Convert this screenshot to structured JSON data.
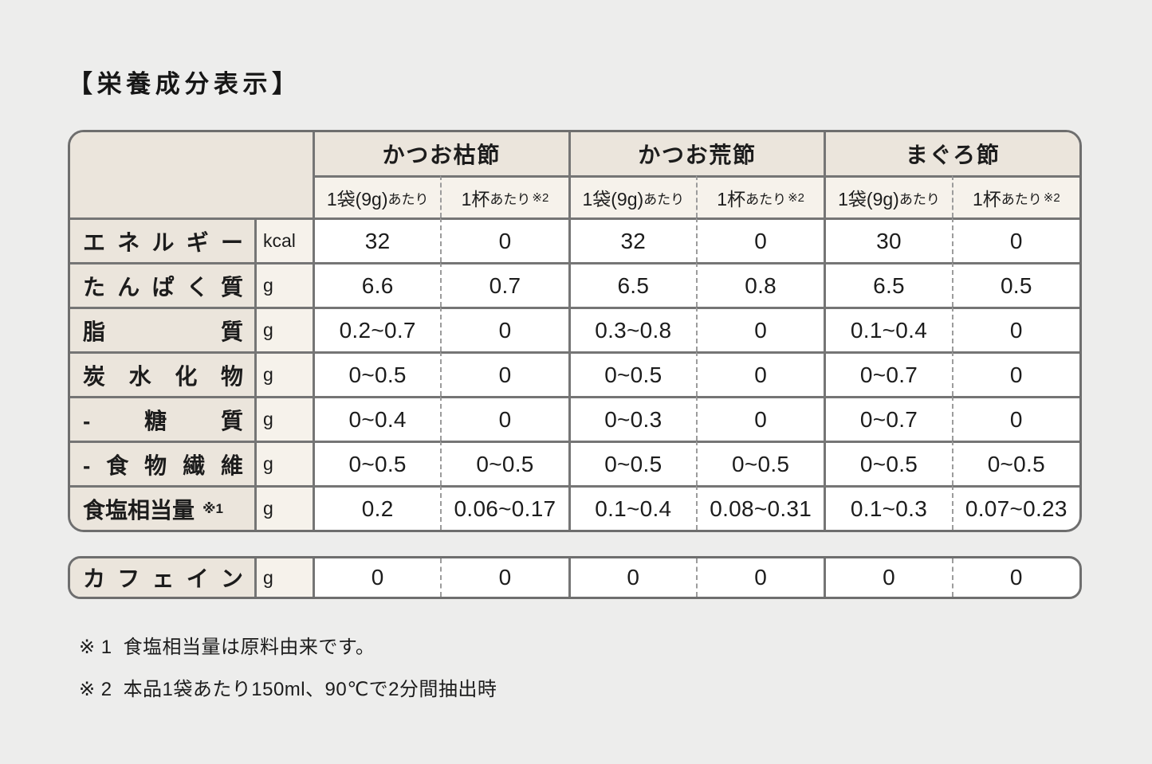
{
  "title": "【栄養成分表示】",
  "colors": {
    "page_bg": "#ededec",
    "header_beige": "#ebe5dc",
    "subheader_beige": "#f6f2eb",
    "border_solid": "#757575",
    "border_dashed": "#9c9c9c",
    "text": "#1c1c1c"
  },
  "table": {
    "products": [
      {
        "name": "かつお枯節"
      },
      {
        "name": "かつお荒節"
      },
      {
        "name": "まぐろ節"
      }
    ],
    "per_bag": {
      "main": "1袋(9g)",
      "suffix": "あたり"
    },
    "per_cup": {
      "main": "1杯",
      "suffix": "あたり",
      "note": "※2"
    },
    "rows": [
      {
        "label": "エネルギー",
        "unit": "kcal",
        "values": [
          "32",
          "0",
          "32",
          "0",
          "30",
          "0"
        ]
      },
      {
        "label": "たんぱく質",
        "unit": "g",
        "values": [
          "6.6",
          "0.7",
          "6.5",
          "0.8",
          "6.5",
          "0.5"
        ]
      },
      {
        "label": "脂質",
        "unit": "g",
        "values": [
          "0.2~0.7",
          "0",
          "0.3~0.8",
          "0",
          "0.1~0.4",
          "0"
        ]
      },
      {
        "label": "炭水化物",
        "unit": "g",
        "values": [
          "0~0.5",
          "0",
          "0~0.5",
          "0",
          "0~0.7",
          "0"
        ]
      },
      {
        "label": "-糖質",
        "unit": "g",
        "values": [
          "0~0.4",
          "0",
          "0~0.3",
          "0",
          "0~0.7",
          "0"
        ]
      },
      {
        "label": "-食物繊維",
        "unit": "g",
        "values": [
          "0~0.5",
          "0~0.5",
          "0~0.5",
          "0~0.5",
          "0~0.5",
          "0~0.5"
        ]
      },
      {
        "label": "食塩相当量",
        "label_note": "※1",
        "unit": "g",
        "values": [
          "0.2",
          "0.06~0.17",
          "0.1~0.4",
          "0.08~0.31",
          "0.1~0.3",
          "0.07~0.23"
        ]
      }
    ],
    "caffeine": {
      "label": "カフェイン",
      "unit": "g",
      "values": [
        "0",
        "0",
        "0",
        "0",
        "0",
        "0"
      ]
    }
  },
  "footnotes": [
    {
      "marker": "※ 1",
      "text": "食塩相当量は原料由来です。"
    },
    {
      "marker": "※ 2",
      "text": "本品1袋あたり150ml、90℃で2分間抽出時"
    }
  ]
}
